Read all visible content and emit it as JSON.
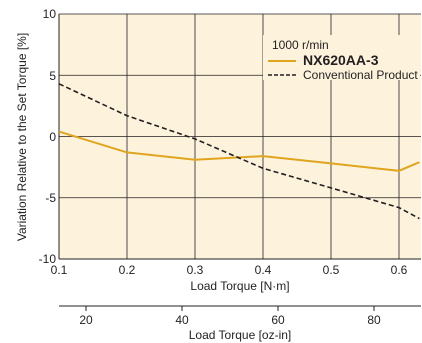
{
  "chart_data": {
    "type": "line",
    "xlabel": "Load Torque [N·m]",
    "ylabel": "Variation Relative to the Set Torque [%]",
    "xlim": [
      0.1,
      0.63
    ],
    "ylim": [
      -10,
      10
    ],
    "x_ticks": [
      "0.1",
      "0.2",
      "0.3",
      "0.4",
      "0.5",
      "0.6"
    ],
    "y_ticks": [
      "10",
      "5",
      "0",
      "-5",
      "-10"
    ],
    "secondary_x_axis": {
      "label": "Load Torque [oz-in]",
      "ticks": [
        "20",
        "40",
        "60",
        "80"
      ]
    },
    "legend": {
      "title": "1000 r/min",
      "position": "top-right"
    },
    "grid": true,
    "series": [
      {
        "name": "NX620AA-3",
        "color": "#e1a41f",
        "style": "solid",
        "x": [
          0.1,
          0.2,
          0.3,
          0.4,
          0.5,
          0.6,
          0.63
        ],
        "y": [
          0.4,
          -1.3,
          -1.9,
          -1.6,
          -2.2,
          -2.8,
          -2.1
        ]
      },
      {
        "name": "Conventional Product",
        "color": "#231f20",
        "style": "dashed",
        "x": [
          0.1,
          0.2,
          0.3,
          0.4,
          0.5,
          0.6,
          0.63
        ],
        "y": [
          4.3,
          1.7,
          -0.2,
          -2.6,
          -4.2,
          -5.8,
          -6.7
        ]
      }
    ]
  }
}
